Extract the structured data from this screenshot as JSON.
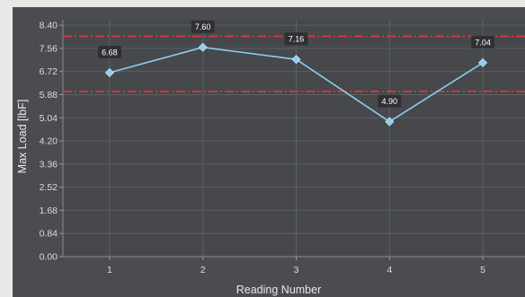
{
  "chart_data": {
    "type": "line",
    "title": "",
    "xlabel": "Reading Number",
    "ylabel": "Max Load [lbF]",
    "categories": [
      "1",
      "2",
      "3",
      "4",
      "5"
    ],
    "x": [
      1,
      2,
      3,
      4,
      5
    ],
    "values": [
      6.68,
      7.6,
      7.16,
      4.9,
      7.04
    ],
    "data_labels": [
      "6.68",
      "7.60",
      "7.16",
      "4.90",
      "7.04"
    ],
    "y_ticks": [
      "0.00",
      "0.84",
      "1.68",
      "2.52",
      "3.36",
      "4.20",
      "5.04",
      "5.88",
      "6.72",
      "7.56",
      "8.40"
    ],
    "ylim": [
      0,
      8.6
    ],
    "xlim": [
      0.5,
      5.5
    ],
    "limit_lines": [
      {
        "kind": "upper",
        "value": 8.0,
        "style": "dash-dot",
        "color": "#e0383e"
      },
      {
        "kind": "lower",
        "value": 6.0,
        "style": "dash-dot",
        "color": "#e0383e"
      }
    ],
    "grid": true,
    "legend": "none",
    "colors": {
      "series": "#8ecdf0",
      "marker": "#8ecdf0",
      "label_bg": "#2e3033",
      "label_text": "#ffffff",
      "limit": "#e0383e"
    }
  }
}
